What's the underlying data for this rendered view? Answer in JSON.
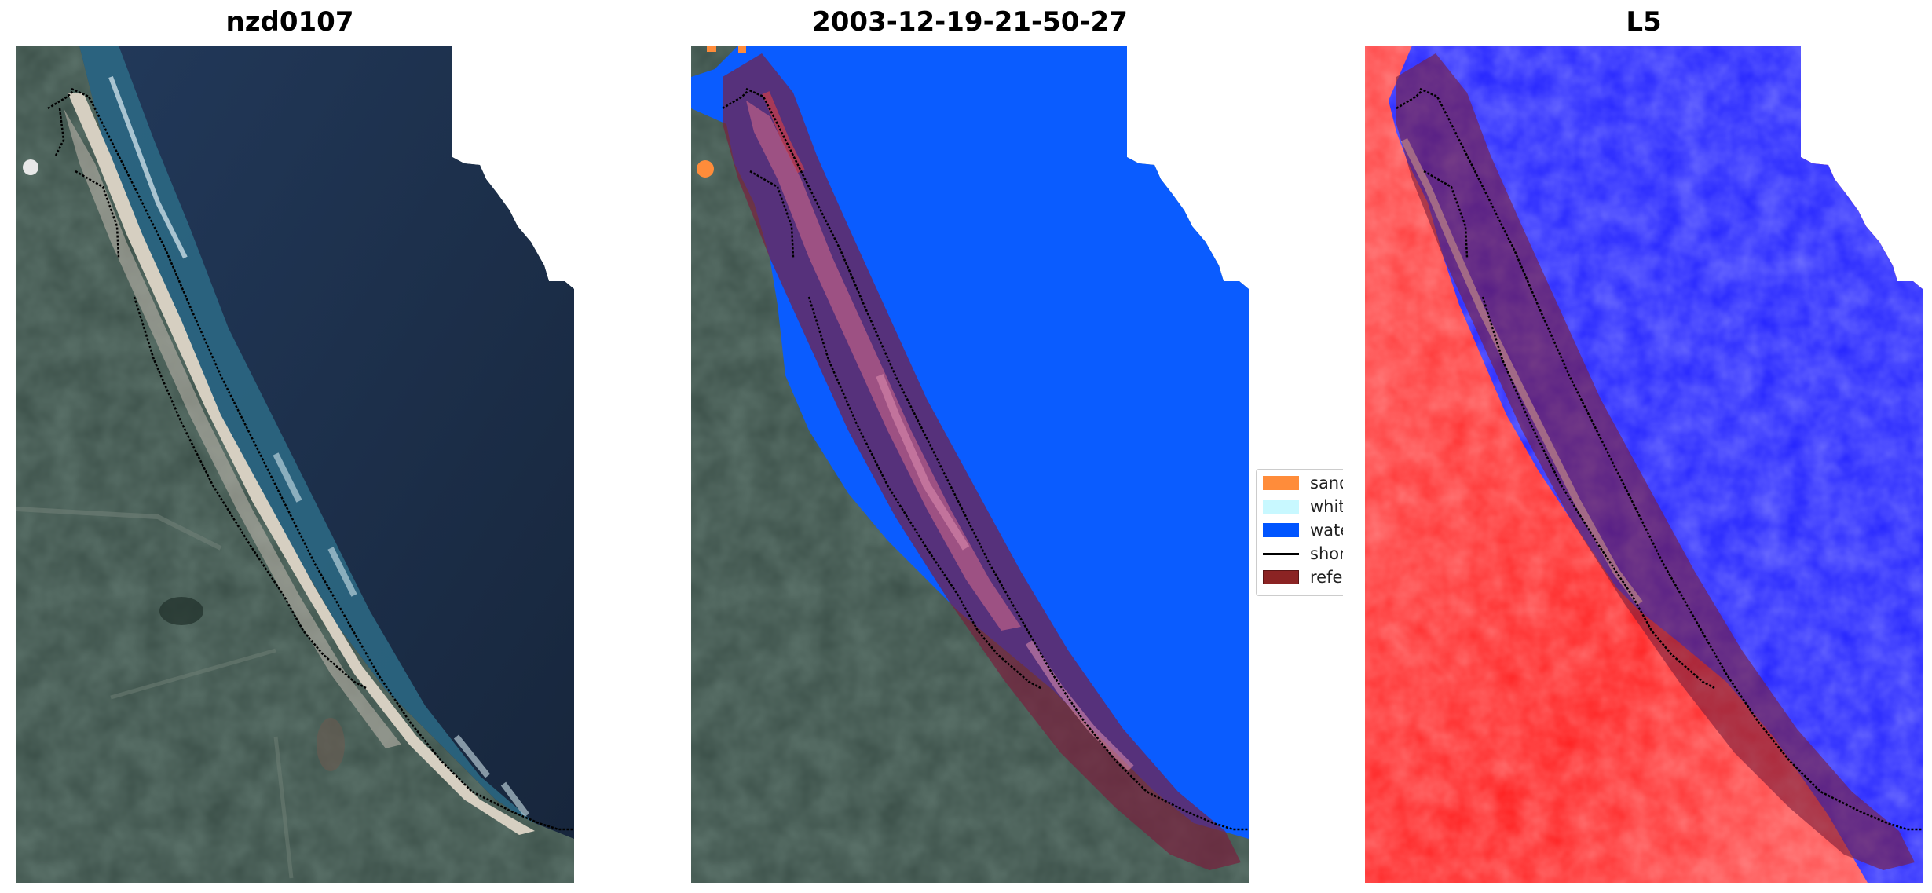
{
  "panels": [
    {
      "title": "nzd0107"
    },
    {
      "title": "2003-12-19-21-50-27"
    },
    {
      "title": "L5"
    }
  ],
  "legend": {
    "items": [
      {
        "label": "sand",
        "kind": "patch",
        "color": "#ff8c3a"
      },
      {
        "label": "whitewater",
        "kind": "patch",
        "color": "#c8f8ff"
      },
      {
        "label": "water",
        "kind": "patch",
        "color": "#0055ff"
      },
      {
        "label": "shoreline",
        "kind": "line",
        "color": "#000000"
      },
      {
        "label": "reference shoreline buffer",
        "kind": "patch",
        "color": "#8b2323"
      }
    ]
  },
  "colors": {
    "land_rgb": "#3c5048",
    "ocean_rgb": "#1b2b44",
    "beach_sand": "#d8d0c0",
    "classified_water": "#0a5cff",
    "buffer_overlay": "#7a1e3c",
    "index_land": "#ff2020",
    "index_water": "#1a1aff"
  }
}
